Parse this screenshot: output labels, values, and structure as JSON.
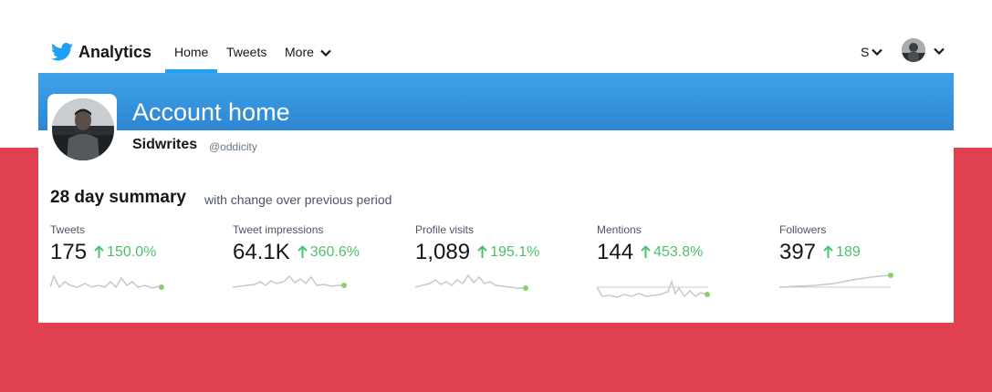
{
  "nav": {
    "brand": "Analytics",
    "tabs": [
      {
        "label": "Home",
        "active": true
      },
      {
        "label": "Tweets",
        "active": false
      },
      {
        "label": "More",
        "active": false
      }
    ],
    "user_initial": "S"
  },
  "header": {
    "title": "Account home",
    "account_name": "Sidwrites",
    "handle": "@oddicity"
  },
  "summary": {
    "title": "28 day summary",
    "subtitle": "with change over previous period",
    "stats": [
      {
        "label": "Tweets",
        "value": "175",
        "change": "150.0%"
      },
      {
        "label": "Tweet impressions",
        "value": "64.1K",
        "change": "360.6%"
      },
      {
        "label": "Profile visits",
        "value": "1,089",
        "change": "195.1%"
      },
      {
        "label": "Mentions",
        "value": "144",
        "change": "453.8%"
      },
      {
        "label": "Followers",
        "value": "397",
        "change": "189"
      }
    ]
  },
  "colors": {
    "accent_blue": "#1da1f2",
    "positive_green": "#4ac26b",
    "backdrop_red": "#e0404f"
  }
}
